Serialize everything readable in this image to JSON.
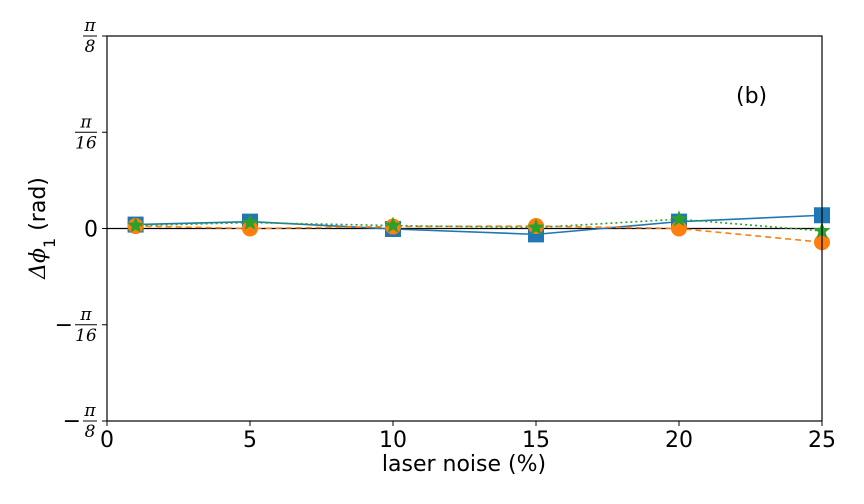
{
  "chart_data": {
    "type": "line",
    "panel_label": "(b)",
    "xlabel": "laser noise (%)",
    "ylabel": {
      "main": "Δϕ",
      "sub": "1",
      "unit": " (rad)"
    },
    "xlim": [
      0,
      25
    ],
    "ylim": [
      -0.3927,
      0.3927
    ],
    "x_ticks": [
      0,
      5,
      10,
      15,
      20,
      25
    ],
    "y_ticks": [
      {
        "value": -0.3927,
        "sign": "−",
        "num": "π",
        "den": "8"
      },
      {
        "value": -0.19635,
        "sign": "−",
        "num": "π",
        "den": "16"
      },
      {
        "value": 0,
        "text": "0"
      },
      {
        "value": 0.19635,
        "sign": "",
        "num": "π",
        "den": "16"
      },
      {
        "value": 0.3927,
        "sign": "",
        "num": "π",
        "den": "8"
      }
    ],
    "zero_line": true,
    "grid": false,
    "series": [
      {
        "color": "#1f77b4",
        "linestyle": "solid",
        "marker": "square",
        "x": [
          1,
          5,
          10,
          15,
          20,
          25
        ],
        "y": [
          0.008,
          0.014,
          -0.001,
          -0.012,
          0.014,
          0.027
        ]
      },
      {
        "color": "#ff7f0e",
        "linestyle": "dashed",
        "marker": "circle",
        "x": [
          1,
          5,
          10,
          15,
          20,
          25
        ],
        "y": [
          0.005,
          0.0,
          0.004,
          0.005,
          0.0,
          -0.028
        ]
      },
      {
        "color": "#2ca02c",
        "linestyle": "dotted",
        "marker": "star",
        "x": [
          1,
          5,
          10,
          15,
          20,
          25
        ],
        "y": [
          0.006,
          0.012,
          0.006,
          0.002,
          0.019,
          -0.005
        ]
      }
    ]
  }
}
